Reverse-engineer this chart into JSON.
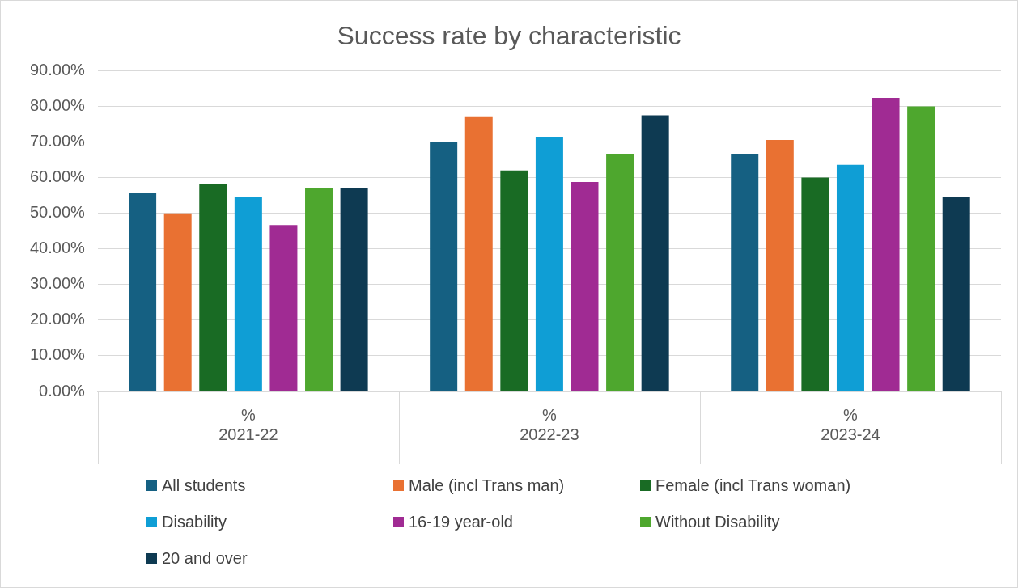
{
  "chart_data": {
    "type": "bar",
    "title": "Success rate by characteristic",
    "categories": [
      "2021-22",
      "2022-23",
      "2023-24"
    ],
    "annotations": [
      "%",
      "%",
      "%"
    ],
    "series": [
      {
        "name": "All students",
        "color": "#156082",
        "values": [
          55.6,
          70.0,
          66.7
        ]
      },
      {
        "name": "Male (incl Trans man)",
        "color": "#e97132",
        "values": [
          50.0,
          77.0,
          70.6
        ]
      },
      {
        "name": "Female (incl Trans woman)",
        "color": "#196b24",
        "values": [
          58.3,
          62.0,
          60.0
        ]
      },
      {
        "name": "Disability",
        "color": "#0f9ed5",
        "values": [
          54.5,
          71.4,
          63.6
        ]
      },
      {
        "name": "16-19 year-old",
        "color": "#a02b93",
        "values": [
          46.7,
          58.8,
          82.4
        ]
      },
      {
        "name": "Without Disability",
        "color": "#4ea72e",
        "values": [
          57.0,
          66.7,
          80.0
        ]
      },
      {
        "name": "20 and over",
        "color": "#0e3a52",
        "values": [
          57.0,
          77.5,
          54.5
        ]
      }
    ],
    "ylim": [
      0,
      90
    ],
    "yticks": [
      {
        "value": 0,
        "label": "0.00%"
      },
      {
        "value": 10,
        "label": "10.00%"
      },
      {
        "value": 20,
        "label": "20.00%"
      },
      {
        "value": 30,
        "label": "30.00%"
      },
      {
        "value": 40,
        "label": "40.00%"
      },
      {
        "value": 50,
        "label": "50.00%"
      },
      {
        "value": 60,
        "label": "60.00%"
      },
      {
        "value": 70,
        "label": "70.00%"
      },
      {
        "value": 80,
        "label": "80.00%"
      },
      {
        "value": 90,
        "label": "90.00%"
      }
    ],
    "grid": "y",
    "legend": "bottom"
  }
}
